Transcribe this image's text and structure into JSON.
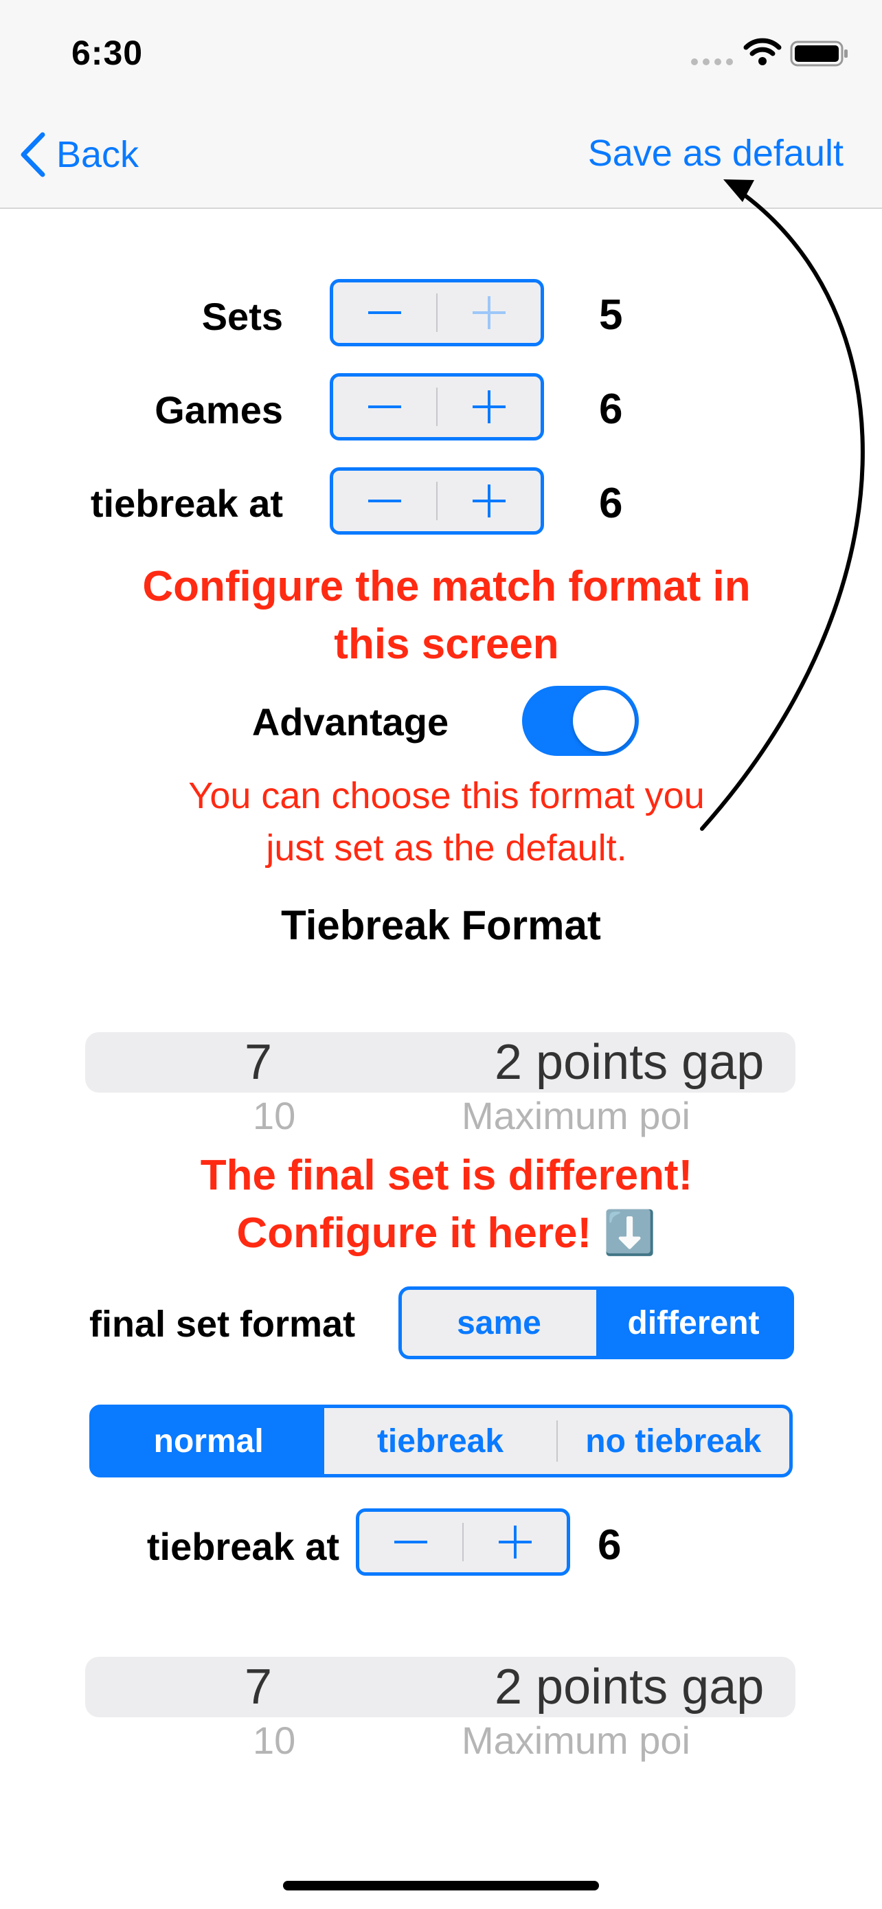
{
  "status": {
    "time": "6:30"
  },
  "nav": {
    "back": "Back",
    "action": "Save as default"
  },
  "rows": [
    {
      "label": "Sets",
      "value": "5"
    },
    {
      "label": "Games",
      "value": "6"
    },
    {
      "label": "tiebreak at",
      "value": "6"
    }
  ],
  "annotations": {
    "configure": "Configure the match format in this screen",
    "default_hint": "You can choose this format you just set as the default.",
    "final_set": "The final set is different! Configure it here! ⬇️"
  },
  "advantage": {
    "label": "Advantage",
    "on": true
  },
  "tiebreak_format": {
    "title": "Tiebreak Format",
    "picker": {
      "points": "7",
      "gap": "2 points gap",
      "next_points": "10",
      "next_gap": "Maximum poi"
    }
  },
  "final_set_format": {
    "label": "final set format",
    "options": [
      "same",
      "different"
    ],
    "selected": "different"
  },
  "final_mode": {
    "options": [
      "normal",
      "tiebreak",
      "no tiebreak"
    ],
    "selected": "normal"
  },
  "final_tiebreak": {
    "label": "tiebreak at",
    "value": "6",
    "picker": {
      "points": "7",
      "gap": "2 points gap",
      "next_points": "10",
      "next_gap": "Maximum poi"
    }
  },
  "colors": {
    "accent": "#0a7aff",
    "annotation": "#ff2a12"
  }
}
